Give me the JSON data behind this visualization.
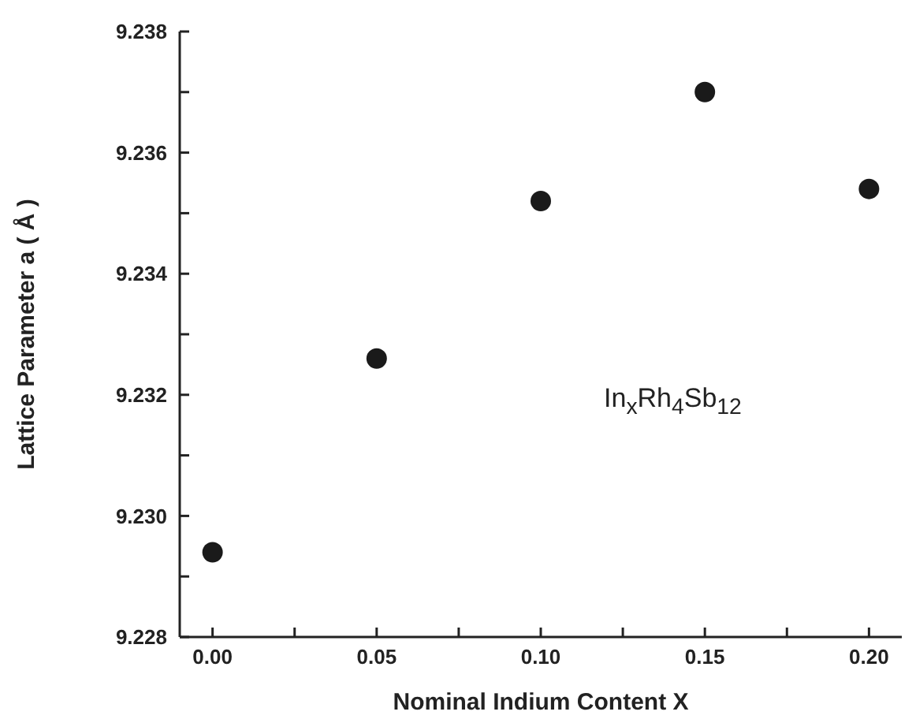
{
  "chart_data": {
    "type": "scatter",
    "xlabel": "Nominal Indium Content X",
    "ylabel": "Lattice Parameter a ( Å )",
    "x": [
      0,
      0.05,
      0.1,
      0.15,
      0.2
    ],
    "series": [
      {
        "color": "#1a1a1a",
        "values": [
          9.2294,
          9.2326,
          9.2352,
          9.237,
          9.2354
        ]
      }
    ],
    "xlim": [
      -0.01,
      0.21
    ],
    "xticks": [
      {
        "value": 0,
        "label": "0.00"
      },
      {
        "value": 0.025,
        "label": null
      },
      {
        "value": 0.05,
        "label": "0.05"
      },
      {
        "value": 0.075,
        "label": null
      },
      {
        "value": 0.1,
        "label": "0.10"
      },
      {
        "value": 0.125,
        "label": null
      },
      {
        "value": 0.15,
        "label": "0.15"
      },
      {
        "value": 0.175,
        "label": null
      },
      {
        "value": 0.2,
        "label": "0.20"
      }
    ],
    "ylim": [
      9.228,
      9.238
    ],
    "yticks": [
      9.228,
      {
        "value": 9.229,
        "label": null
      },
      {
        "value": 9.23,
        "label": "9.230"
      },
      {
        "value": 9.231,
        "label": null
      },
      9.232,
      {
        "value": 9.233,
        "label": null
      },
      9.234,
      {
        "value": 9.235,
        "label": null
      },
      9.236,
      {
        "value": 9.237,
        "label": null
      },
      9.238
    ],
    "annotations": [
      "In$_{x}$Rh$_{4}$Sb$_{12}$"
    ],
    "marker": "circle",
    "grid": false,
    "legend": false
  }
}
